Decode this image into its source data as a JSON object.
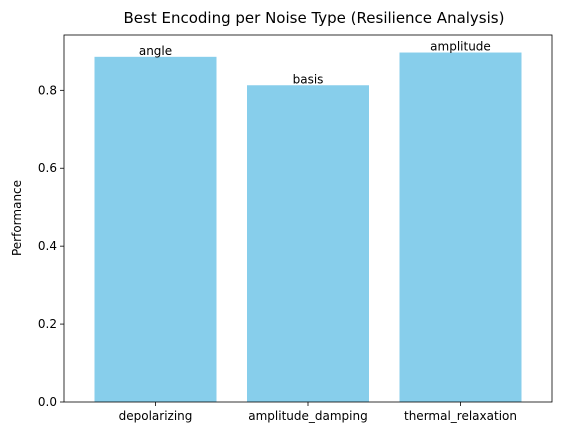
{
  "chart_data": {
    "type": "bar",
    "title": "Best Encoding per Noise Type (Resilience Analysis)",
    "xlabel": "",
    "ylabel": "Performance",
    "categories": [
      "depolarizing",
      "amplitude_damping",
      "thermal_relaxation"
    ],
    "values": [
      0.886,
      0.813,
      0.897
    ],
    "bar_labels": [
      "angle",
      "basis",
      "amplitude"
    ],
    "ylim": [
      0,
      0.942
    ],
    "yticks": [
      0.0,
      0.2,
      0.4,
      0.6,
      0.8
    ],
    "ytick_labels": [
      "0.0",
      "0.2",
      "0.4",
      "0.6",
      "0.8"
    ],
    "grid": false,
    "bar_color": "#87ceeb"
  }
}
